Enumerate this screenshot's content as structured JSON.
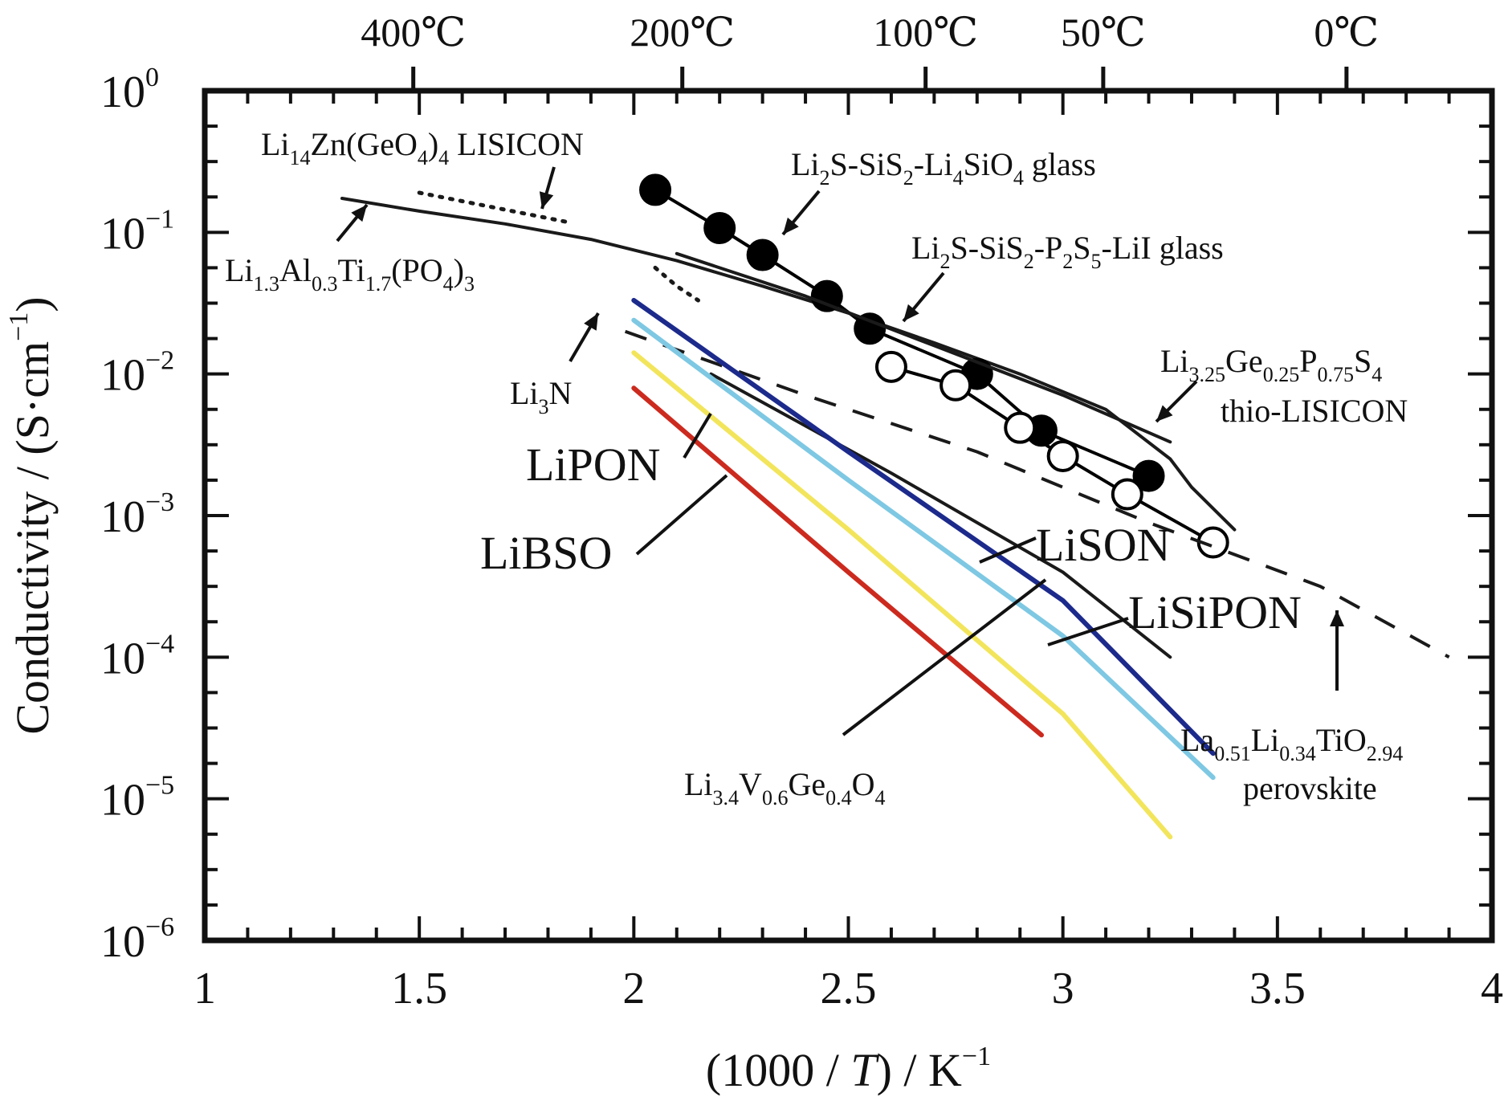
{
  "chart_data": {
    "type": "line",
    "xlabel": "(1000 / T) / K",
    "xlabel_parts": {
      "open": "(1000 / ",
      "italic": "T",
      "close": ") / K",
      "sup": "−1"
    },
    "ylabel": "Conductivity / (S·cm",
    "ylabel_parts": {
      "main": "Conductivity / (S·cm",
      "sup": "−1",
      "close": ")"
    },
    "xlim": [
      1,
      4
    ],
    "ylim_log10": [
      -6,
      0
    ],
    "x_ticks": [
      "1",
      "1.5",
      "2",
      "2.5",
      "3",
      "3.5",
      "4"
    ],
    "y_ticks": [
      {
        "base": "10",
        "exp": "0",
        "value": 0
      },
      {
        "base": "10",
        "exp": "−1",
        "value": -1
      },
      {
        "base": "10",
        "exp": "−2",
        "value": -2
      },
      {
        "base": "10",
        "exp": "−3",
        "value": -3
      },
      {
        "base": "10",
        "exp": "−4",
        "value": -4
      },
      {
        "base": "10",
        "exp": "−5",
        "value": -5
      },
      {
        "base": "10",
        "exp": "−6",
        "value": -6
      }
    ],
    "top_axis": [
      {
        "label": "400℃",
        "x": 1.486
      },
      {
        "label": "200℃",
        "x": 2.113
      },
      {
        "label": "100℃",
        "x": 2.68
      },
      {
        "label": "50℃",
        "x": 3.094
      },
      {
        "label": "0℃",
        "x": 3.661
      }
    ],
    "series": [
      {
        "key": "lisicon",
        "color": "#1a1a1a",
        "style": "dotted",
        "x": [
          1.5,
          1.6,
          1.7,
          1.8,
          1.85
        ],
        "log10_sigma": [
          -0.72,
          -0.78,
          -0.84,
          -0.9,
          -0.93
        ]
      },
      {
        "key": "latp",
        "color": "#1a1a1a",
        "style": "solid",
        "x": [
          1.32,
          1.5,
          1.7,
          1.9,
          2.1,
          2.3,
          2.5,
          2.7,
          2.9,
          3.1,
          3.25,
          3.3,
          3.4
        ],
        "log10_sigma": [
          -0.76,
          -0.85,
          -0.94,
          -1.05,
          -1.2,
          -1.38,
          -1.57,
          -1.78,
          -2.0,
          -2.25,
          -2.6,
          -2.8,
          -3.1
        ]
      },
      {
        "key": "li2s_sis2_li4sio4",
        "color": "#000000",
        "style": "solid-markers",
        "marker": "filled",
        "x": [
          2.05,
          2.2,
          2.3,
          2.45,
          2.55,
          2.8,
          2.95,
          3.2
        ],
        "log10_sigma": [
          -0.7,
          -0.97,
          -1.16,
          -1.45,
          -1.68,
          -2.0,
          -2.4,
          -2.72
        ]
      },
      {
        "key": "li2s_sis2_p2s5_lii",
        "color": "#000000",
        "style": "solid-markers",
        "marker": "open",
        "x": [
          2.6,
          2.75,
          2.9,
          3.0,
          3.15,
          3.35
        ],
        "log10_sigma": [
          -1.95,
          -2.08,
          -2.38,
          -2.58,
          -2.85,
          -3.19
        ]
      },
      {
        "key": "thio_lisicon",
        "color": "#1a1a1a",
        "style": "solid",
        "x": [
          2.1,
          2.4,
          2.7,
          3.0,
          3.25
        ],
        "log10_sigma": [
          -1.15,
          -1.45,
          -1.8,
          -2.15,
          -2.48
        ]
      },
      {
        "key": "li3n",
        "color": "#1a1a1a",
        "style": "dotted",
        "x": [
          2.05,
          2.1,
          2.15
        ],
        "log10_sigma": [
          -1.25,
          -1.38,
          -1.48
        ]
      },
      {
        "key": "perovskite",
        "color": "#1a1a1a",
        "style": "dashed",
        "x": [
          1.98,
          2.4,
          2.8,
          3.2,
          3.6,
          3.9
        ],
        "log10_sigma": [
          -1.7,
          -2.15,
          -2.55,
          -3.05,
          -3.5,
          -4.0
        ]
      },
      {
        "key": "lisipon_black",
        "color": "#1a1a1a",
        "style": "solid",
        "x": [
          2.18,
          2.6,
          3.0,
          3.25
        ],
        "log10_sigma": [
          -2.0,
          -2.7,
          -3.4,
          -4.0
        ]
      },
      {
        "key": "lison_blue",
        "color": "#1c2a8c",
        "style": "solid",
        "x": [
          2.0,
          2.5,
          3.0,
          3.35
        ],
        "log10_sigma": [
          -1.48,
          -2.55,
          -3.6,
          -4.68
        ]
      },
      {
        "key": "lisipon_cyan",
        "color": "#7ec8e3",
        "style": "solid",
        "x": [
          2.0,
          2.5,
          3.0,
          3.35
        ],
        "log10_sigma": [
          -1.62,
          -2.75,
          -3.85,
          -4.85
        ]
      },
      {
        "key": "lipon_yellow",
        "color": "#f2e55c",
        "style": "solid",
        "x": [
          2.0,
          2.5,
          3.0,
          3.25
        ],
        "log10_sigma": [
          -1.85,
          -3.1,
          -4.4,
          -5.27
        ]
      },
      {
        "key": "libso_red",
        "color": "#cc2a1e",
        "style": "solid",
        "x": [
          2.0,
          2.5,
          2.95
        ],
        "log10_sigma": [
          -2.1,
          -3.4,
          -4.55
        ]
      }
    ],
    "annotations": [
      {
        "key": "a_lisicon",
        "parts": [
          [
            "Li",
            "n"
          ],
          [
            "14",
            "sub"
          ],
          [
            "Zn(GeO",
            "n"
          ],
          [
            "4",
            "sub"
          ],
          [
            ")",
            "n"
          ],
          [
            "4",
            "sub"
          ],
          [
            " LISICON",
            "n"
          ]
        ],
        "big": false
      },
      {
        "key": "a_latp",
        "parts": [
          [
            "Li",
            "n"
          ],
          [
            "1.3",
            "sub"
          ],
          [
            "Al",
            "n"
          ],
          [
            "0.3",
            "sub"
          ],
          [
            "Ti",
            "n"
          ],
          [
            "1.7",
            "sub"
          ],
          [
            "(PO",
            "n"
          ],
          [
            "4",
            "sub"
          ],
          [
            ")",
            "n"
          ],
          [
            "3",
            "sub"
          ]
        ],
        "big": false
      },
      {
        "key": "a_li2s_li4sio4",
        "parts": [
          [
            "Li",
            "n"
          ],
          [
            "2",
            "sub"
          ],
          [
            "S-SiS",
            "n"
          ],
          [
            "2",
            "sub"
          ],
          [
            "-Li",
            "n"
          ],
          [
            "4",
            "sub"
          ],
          [
            "SiO",
            "n"
          ],
          [
            "4",
            "sub"
          ],
          [
            " glass",
            "n"
          ]
        ],
        "big": false
      },
      {
        "key": "a_li2s_lii",
        "parts": [
          [
            "Li",
            "n"
          ],
          [
            "2",
            "sub"
          ],
          [
            "S-SiS",
            "n"
          ],
          [
            "2",
            "sub"
          ],
          [
            "-P",
            "n"
          ],
          [
            "2",
            "sub"
          ],
          [
            "S",
            "n"
          ],
          [
            "5",
            "sub"
          ],
          [
            "-LiI glass",
            "n"
          ]
        ],
        "big": false
      },
      {
        "key": "a_thio",
        "parts": [
          [
            "Li",
            "n"
          ],
          [
            "3.25",
            "sub"
          ],
          [
            "Ge",
            "n"
          ],
          [
            "0.25",
            "sub"
          ],
          [
            "P",
            "n"
          ],
          [
            "0.75",
            "sub"
          ],
          [
            "S",
            "n"
          ],
          [
            "4",
            "sub"
          ]
        ],
        "big": false
      },
      {
        "key": "a_thio2",
        "parts": [
          [
            "thio-LISICON",
            "n"
          ]
        ],
        "big": false
      },
      {
        "key": "a_li3n",
        "parts": [
          [
            "Li",
            "n"
          ],
          [
            "3",
            "sub"
          ],
          [
            "N",
            "n"
          ]
        ],
        "big": false
      },
      {
        "key": "a_lipon",
        "parts": [
          [
            "LiPON",
            "n"
          ]
        ],
        "big": true
      },
      {
        "key": "a_libso",
        "parts": [
          [
            "LiBSO",
            "n"
          ]
        ],
        "big": true
      },
      {
        "key": "a_lison",
        "parts": [
          [
            "LiSON",
            "n"
          ]
        ],
        "big": true
      },
      {
        "key": "a_lisipon",
        "parts": [
          [
            "LiSiPON",
            "n"
          ]
        ],
        "big": true
      },
      {
        "key": "a_llto",
        "parts": [
          [
            "La",
            "n"
          ],
          [
            "0.51",
            "sub"
          ],
          [
            "Li",
            "n"
          ],
          [
            "0.34",
            "sub"
          ],
          [
            "TiO",
            "n"
          ],
          [
            "2.94",
            "sub"
          ]
        ],
        "big": false
      },
      {
        "key": "a_llto2",
        "parts": [
          [
            "perovskite",
            "n"
          ]
        ],
        "big": false
      },
      {
        "key": "a_lvgo",
        "parts": [
          [
            "Li",
            "n"
          ],
          [
            "3.4",
            "sub"
          ],
          [
            "V",
            "n"
          ],
          [
            "0.6",
            "sub"
          ],
          [
            "Ge",
            "n"
          ],
          [
            "0.4",
            "sub"
          ],
          [
            "O",
            "n"
          ],
          [
            "4",
            "sub"
          ]
        ],
        "big": false
      }
    ]
  }
}
